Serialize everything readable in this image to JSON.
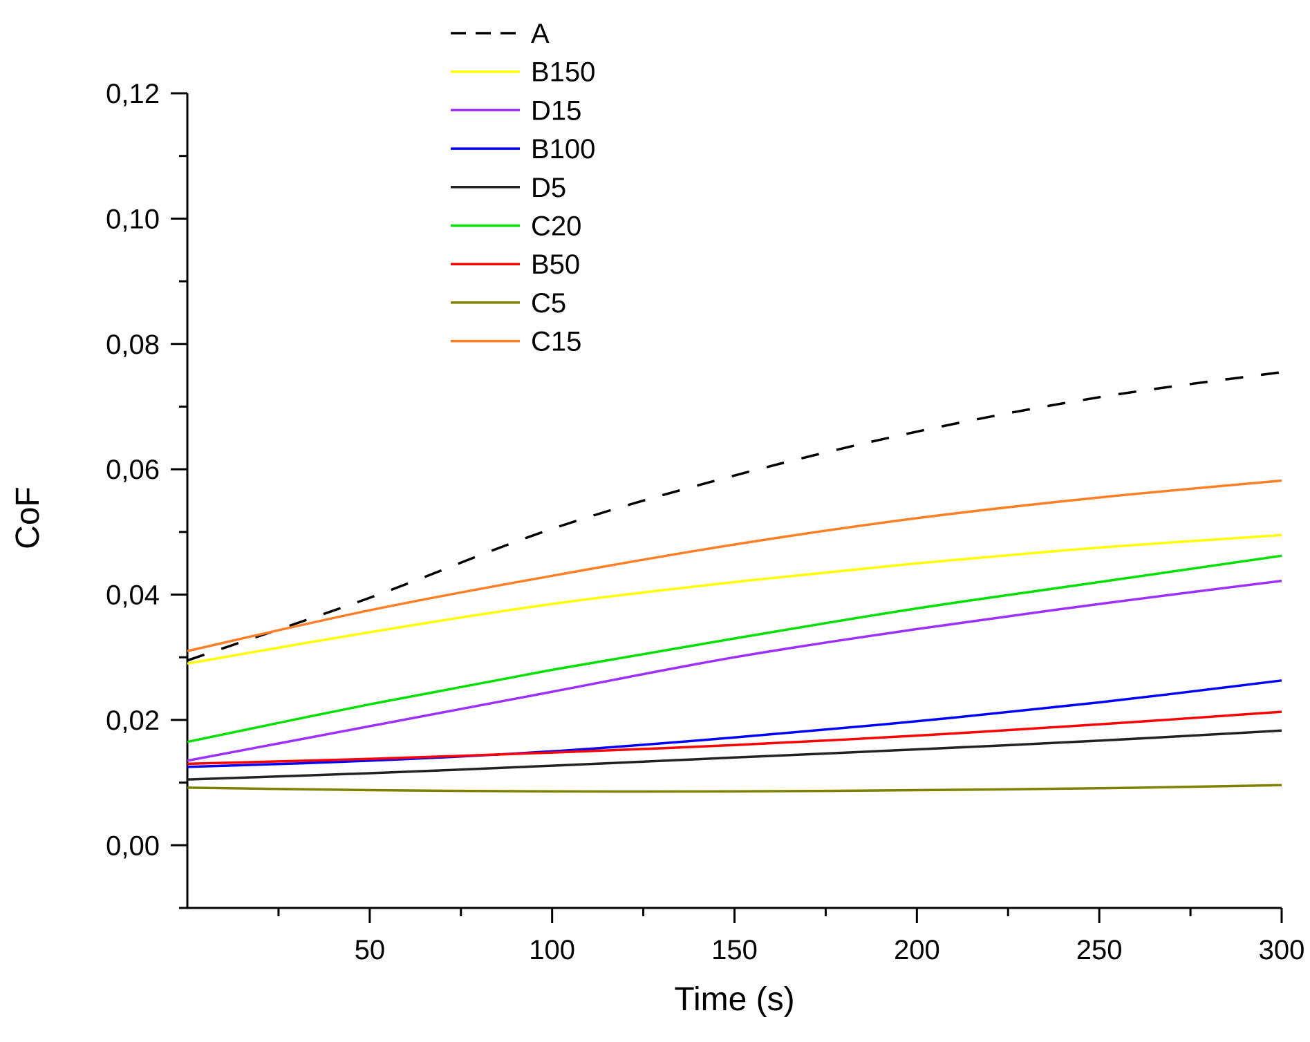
{
  "chart_data": {
    "type": "line",
    "title": "",
    "xlabel": "Time (s)",
    "ylabel": "CoF",
    "xlim": [
      0,
      300
    ],
    "ylim": [
      -0.01,
      0.12
    ],
    "x_ticks": [
      {
        "value": 50,
        "label": "50"
      },
      {
        "value": 100,
        "label": "100"
      },
      {
        "value": 150,
        "label": "150"
      },
      {
        "value": 200,
        "label": "200"
      },
      {
        "value": 250,
        "label": "250"
      },
      {
        "value": 300,
        "label": "300"
      }
    ],
    "y_ticks": [
      {
        "value": 0.0,
        "label": "0,00"
      },
      {
        "value": 0.02,
        "label": "0,02"
      },
      {
        "value": 0.04,
        "label": "0,04"
      },
      {
        "value": 0.06,
        "label": "0,06"
      },
      {
        "value": 0.08,
        "label": "0,08"
      },
      {
        "value": 0.1,
        "label": "0,10"
      },
      {
        "value": 0.12,
        "label": "0,12"
      }
    ],
    "grid": false,
    "legend_position": "top-center",
    "x": [
      0,
      50,
      100,
      150,
      200,
      250,
      300
    ],
    "series": [
      {
        "name": "A",
        "color": "#000000",
        "dash": "dashed",
        "values": [
          0.0295,
          0.0395,
          0.0505,
          0.059,
          0.066,
          0.0715,
          0.0755
        ]
      },
      {
        "name": "B150",
        "color": "#FFFF00",
        "dash": "solid",
        "values": [
          0.029,
          0.034,
          0.0385,
          0.042,
          0.045,
          0.0475,
          0.0495
        ]
      },
      {
        "name": "D15",
        "color": "#9B30FF",
        "dash": "solid",
        "values": [
          0.0135,
          0.019,
          0.0245,
          0.03,
          0.0345,
          0.0385,
          0.0422
        ]
      },
      {
        "name": "B100",
        "color": "#0000FF",
        "dash": "solid",
        "values": [
          0.0125,
          0.0135,
          0.015,
          0.0172,
          0.0198,
          0.0228,
          0.0263
        ]
      },
      {
        "name": "D5",
        "color": "#222222",
        "dash": "solid",
        "values": [
          0.0105,
          0.0115,
          0.0127,
          0.014,
          0.0153,
          0.0167,
          0.0183
        ]
      },
      {
        "name": "C20",
        "color": "#00E000",
        "dash": "solid",
        "values": [
          0.0165,
          0.0225,
          0.028,
          0.033,
          0.0378,
          0.042,
          0.0462
        ]
      },
      {
        "name": "B50",
        "color": "#FF0000",
        "dash": "solid",
        "values": [
          0.013,
          0.0138,
          0.0148,
          0.016,
          0.0175,
          0.0193,
          0.0213
        ]
      },
      {
        "name": "C5",
        "color": "#808000",
        "dash": "solid",
        "values": [
          0.0092,
          0.0088,
          0.0086,
          0.0086,
          0.0088,
          0.0091,
          0.0096
        ]
      },
      {
        "name": "C15",
        "color": "#FF7F27",
        "dash": "solid",
        "values": [
          0.031,
          0.0375,
          0.043,
          0.048,
          0.0522,
          0.0555,
          0.0582
        ]
      }
    ]
  }
}
